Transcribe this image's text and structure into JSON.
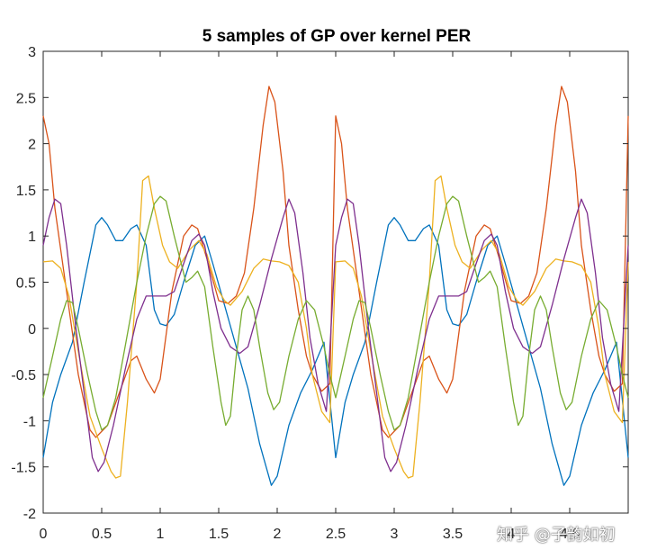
{
  "chart_data": {
    "type": "line",
    "title": "5 samples of GP over kernel PER",
    "xlabel": "",
    "ylabel": "",
    "xlim": [
      0,
      5
    ],
    "ylim": [
      -2,
      3
    ],
    "xticks": [
      "0",
      "0.5",
      "1",
      "1.5",
      "2",
      "2.5",
      "3",
      "3.5",
      "4",
      "4.5"
    ],
    "yticks": [
      "-2",
      "-1.5",
      "-1",
      "-0.5",
      "0",
      "0.5",
      "1",
      "1.5",
      "2",
      "2.5",
      "3"
    ],
    "grid": false,
    "period": 2.5,
    "series": [
      {
        "color": "#0072BD",
        "points": [
          [
            0,
            -1.4
          ],
          [
            0.08,
            -0.8
          ],
          [
            0.15,
            -0.5
          ],
          [
            0.25,
            -0.15
          ],
          [
            0.35,
            0.5
          ],
          [
            0.45,
            1.12
          ],
          [
            0.5,
            1.2
          ],
          [
            0.55,
            1.12
          ],
          [
            0.62,
            0.95
          ],
          [
            0.68,
            0.95
          ],
          [
            0.75,
            1.08
          ],
          [
            0.8,
            1.12
          ],
          [
            0.88,
            0.9
          ],
          [
            0.95,
            0.2
          ],
          [
            1.0,
            0.05
          ],
          [
            1.05,
            0.03
          ],
          [
            1.12,
            0.15
          ],
          [
            1.2,
            0.5
          ],
          [
            1.3,
            0.9
          ],
          [
            1.38,
            1.0
          ],
          [
            1.45,
            0.7
          ],
          [
            1.55,
            0.25
          ],
          [
            1.65,
            -0.2
          ],
          [
            1.75,
            -0.65
          ],
          [
            1.85,
            -1.25
          ],
          [
            1.95,
            -1.7
          ],
          [
            2.0,
            -1.6
          ],
          [
            2.1,
            -1.05
          ],
          [
            2.2,
            -0.7
          ],
          [
            2.3,
            -0.45
          ],
          [
            2.4,
            -0.15
          ],
          [
            2.5,
            -1.4
          ]
        ]
      },
      {
        "color": "#D95319",
        "points": [
          [
            0,
            2.3
          ],
          [
            0.05,
            2.0
          ],
          [
            0.1,
            1.3
          ],
          [
            0.2,
            0.4
          ],
          [
            0.3,
            -0.5
          ],
          [
            0.4,
            -1.1
          ],
          [
            0.45,
            -1.18
          ],
          [
            0.55,
            -1.05
          ],
          [
            0.65,
            -0.7
          ],
          [
            0.75,
            -0.35
          ],
          [
            0.8,
            -0.3
          ],
          [
            0.88,
            -0.55
          ],
          [
            0.95,
            -0.7
          ],
          [
            1.0,
            -0.55
          ],
          [
            1.1,
            0.4
          ],
          [
            1.2,
            1.0
          ],
          [
            1.27,
            1.12
          ],
          [
            1.32,
            1.08
          ],
          [
            1.4,
            0.75
          ],
          [
            1.5,
            0.3
          ],
          [
            1.58,
            0.27
          ],
          [
            1.65,
            0.35
          ],
          [
            1.72,
            0.6
          ],
          [
            1.8,
            1.3
          ],
          [
            1.88,
            2.2
          ],
          [
            1.93,
            2.62
          ],
          [
            1.98,
            2.45
          ],
          [
            2.05,
            1.7
          ],
          [
            2.1,
            0.9
          ],
          [
            2.18,
            0.2
          ],
          [
            2.25,
            -0.3
          ],
          [
            2.3,
            -0.5
          ],
          [
            2.38,
            -0.68
          ],
          [
            2.45,
            -0.6
          ],
          [
            2.5,
            2.3
          ]
        ]
      },
      {
        "color": "#EDB120",
        "points": [
          [
            0,
            0.72
          ],
          [
            0.08,
            0.73
          ],
          [
            0.15,
            0.65
          ],
          [
            0.22,
            0.35
          ],
          [
            0.3,
            -0.25
          ],
          [
            0.4,
            -0.95
          ],
          [
            0.5,
            -1.3
          ],
          [
            0.58,
            -1.55
          ],
          [
            0.62,
            -1.62
          ],
          [
            0.66,
            -1.6
          ],
          [
            0.72,
            -0.8
          ],
          [
            0.8,
            0.5
          ],
          [
            0.85,
            1.6
          ],
          [
            0.9,
            1.65
          ],
          [
            0.95,
            1.3
          ],
          [
            1.02,
            0.9
          ],
          [
            1.08,
            0.72
          ],
          [
            1.15,
            0.65
          ],
          [
            1.25,
            0.85
          ],
          [
            1.33,
            0.95
          ],
          [
            1.4,
            0.8
          ],
          [
            1.48,
            0.45
          ],
          [
            1.55,
            0.3
          ],
          [
            1.6,
            0.25
          ],
          [
            1.7,
            0.4
          ],
          [
            1.8,
            0.65
          ],
          [
            1.88,
            0.75
          ],
          [
            1.95,
            0.73
          ],
          [
            2.02,
            0.72
          ],
          [
            2.1,
            0.68
          ],
          [
            2.18,
            0.5
          ],
          [
            2.25,
            0.0
          ],
          [
            2.3,
            -0.5
          ],
          [
            2.38,
            -0.9
          ],
          [
            2.45,
            -1.02
          ],
          [
            2.5,
            0.72
          ]
        ]
      },
      {
        "color": "#7E2F8E",
        "points": [
          [
            0,
            0.9
          ],
          [
            0.05,
            1.2
          ],
          [
            0.1,
            1.4
          ],
          [
            0.15,
            1.35
          ],
          [
            0.2,
            0.9
          ],
          [
            0.28,
            0.0
          ],
          [
            0.35,
            -0.7
          ],
          [
            0.42,
            -1.4
          ],
          [
            0.47,
            -1.55
          ],
          [
            0.52,
            -1.45
          ],
          [
            0.6,
            -1.05
          ],
          [
            0.7,
            -0.45
          ],
          [
            0.8,
            0.1
          ],
          [
            0.88,
            0.35
          ],
          [
            0.95,
            0.35
          ],
          [
            1.05,
            0.35
          ],
          [
            1.12,
            0.4
          ],
          [
            1.2,
            0.7
          ],
          [
            1.27,
            0.95
          ],
          [
            1.33,
            1.02
          ],
          [
            1.38,
            0.9
          ],
          [
            1.45,
            0.4
          ],
          [
            1.52,
            0.0
          ],
          [
            1.6,
            -0.2
          ],
          [
            1.68,
            -0.27
          ],
          [
            1.75,
            -0.2
          ],
          [
            1.85,
            0.25
          ],
          [
            1.95,
            0.75
          ],
          [
            2.05,
            1.2
          ],
          [
            2.1,
            1.4
          ],
          [
            2.15,
            1.25
          ],
          [
            2.22,
            0.6
          ],
          [
            2.28,
            -0.1
          ],
          [
            2.35,
            -0.6
          ],
          [
            2.42,
            -0.9
          ],
          [
            2.5,
            0.9
          ]
        ]
      },
      {
        "color": "#77AC30",
        "points": [
          [
            0,
            -0.75
          ],
          [
            0.08,
            -0.3
          ],
          [
            0.15,
            0.1
          ],
          [
            0.2,
            0.3
          ],
          [
            0.25,
            0.28
          ],
          [
            0.3,
            0.0
          ],
          [
            0.38,
            -0.5
          ],
          [
            0.45,
            -0.9
          ],
          [
            0.5,
            -1.1
          ],
          [
            0.55,
            -1.05
          ],
          [
            0.62,
            -0.75
          ],
          [
            0.7,
            -0.2
          ],
          [
            0.8,
            0.5
          ],
          [
            0.88,
            1.0
          ],
          [
            0.95,
            1.35
          ],
          [
            1.0,
            1.43
          ],
          [
            1.05,
            1.38
          ],
          [
            1.12,
            1.0
          ],
          [
            1.18,
            0.7
          ],
          [
            1.22,
            0.5
          ],
          [
            1.27,
            0.55
          ],
          [
            1.32,
            0.62
          ],
          [
            1.38,
            0.45
          ],
          [
            1.45,
            -0.2
          ],
          [
            1.52,
            -0.8
          ],
          [
            1.56,
            -1.05
          ],
          [
            1.6,
            -0.95
          ],
          [
            1.65,
            -0.3
          ],
          [
            1.7,
            0.2
          ],
          [
            1.75,
            0.35
          ],
          [
            1.8,
            0.2
          ],
          [
            1.85,
            -0.2
          ],
          [
            1.92,
            -0.7
          ],
          [
            1.97,
            -0.88
          ],
          [
            2.02,
            -0.8
          ],
          [
            2.1,
            -0.3
          ],
          [
            2.18,
            0.1
          ],
          [
            2.25,
            0.3
          ],
          [
            2.32,
            0.2
          ],
          [
            2.4,
            -0.2
          ],
          [
            2.45,
            -0.5
          ],
          [
            2.5,
            -0.75
          ]
        ]
      }
    ]
  },
  "watermark": "知乎 @子韵如初"
}
